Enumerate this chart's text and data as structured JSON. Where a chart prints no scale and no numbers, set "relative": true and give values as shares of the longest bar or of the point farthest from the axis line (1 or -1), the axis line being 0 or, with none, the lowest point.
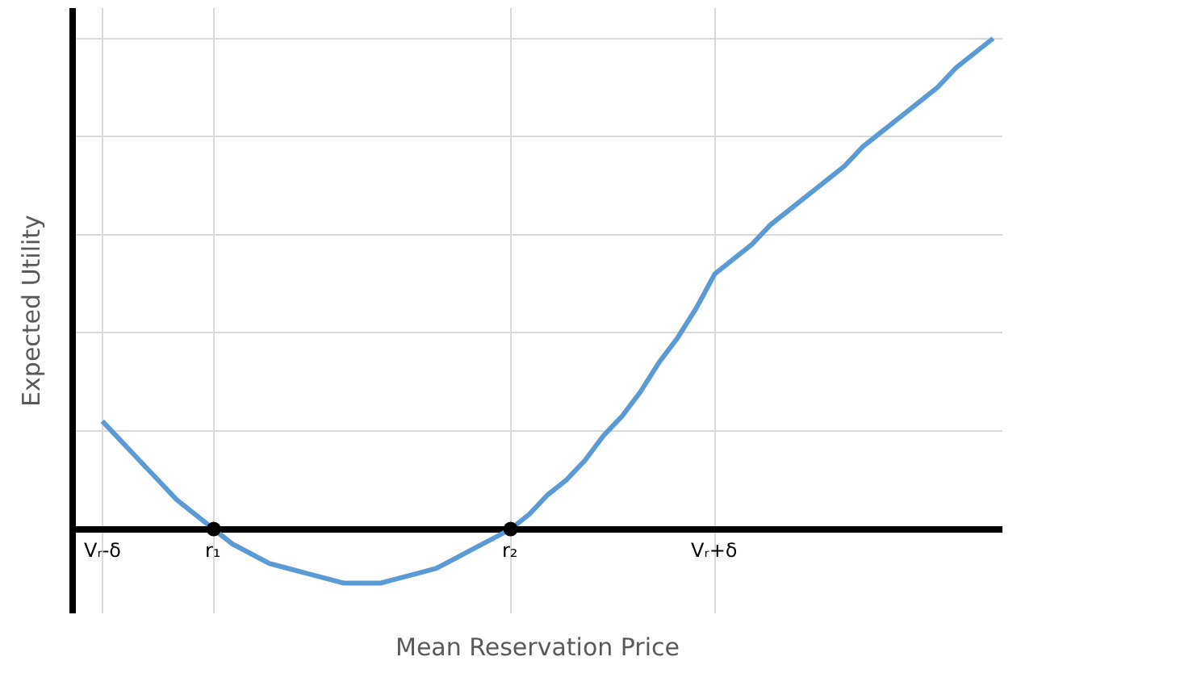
{
  "chart_data": {
    "type": "line",
    "xlabel": "Mean Reservation Price",
    "ylabel": "Expected Utility",
    "relative": true,
    "grid": true,
    "categories": [
      "Vᵣ-δ",
      null,
      null,
      null,
      null,
      null,
      "r₁",
      null,
      null,
      null,
      null,
      null,
      null,
      null,
      null,
      null,
      null,
      null,
      null,
      null,
      null,
      null,
      "r₂",
      null,
      null,
      null,
      null,
      null,
      null,
      null,
      null,
      null,
      null,
      "Vᵣ+δ",
      null,
      null,
      null,
      null,
      null,
      null,
      null,
      null,
      null,
      null,
      null,
      null,
      null,
      null,
      null
    ],
    "series": [
      {
        "color": "#5b9bd5",
        "marker": "none",
        "values": [
          0.22,
          0.18,
          0.14,
          0.1,
          0.06,
          0.03,
          0,
          -0.03,
          -0.05,
          -0.07,
          -0.08,
          -0.09,
          -0.1,
          -0.11,
          -0.11,
          -0.11,
          -0.1,
          -0.09,
          -0.08,
          -0.06,
          -0.04,
          -0.02,
          0,
          0.03,
          0.07,
          0.1,
          0.14,
          0.19,
          0.23,
          0.28,
          0.34,
          0.39,
          0.45,
          0.52,
          0.55,
          0.58,
          0.62,
          0.65,
          0.68,
          0.71,
          0.74,
          0.78,
          0.81,
          0.84,
          0.87,
          0.9,
          0.94,
          0.97,
          1
        ]
      },
      {
        "type": "scatter",
        "color": "#000000",
        "marker": "circle",
        "values": [
          null,
          null,
          null,
          null,
          null,
          null,
          0,
          null,
          null,
          null,
          null,
          null,
          null,
          null,
          null,
          null,
          null,
          null,
          null,
          null,
          null,
          null,
          0,
          null,
          null,
          null,
          null,
          null,
          null,
          null,
          null,
          null,
          null,
          null,
          null,
          null,
          null,
          null,
          null,
          null,
          null,
          null,
          null,
          null,
          null,
          null,
          null,
          null,
          null
        ]
      }
    ]
  }
}
